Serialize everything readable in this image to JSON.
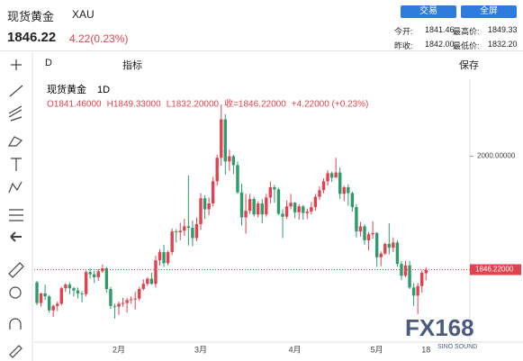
{
  "header": {
    "name": "现货黄金",
    "code": "XAU",
    "price": "1846.22",
    "change": "4.22(0.23%)",
    "buttons": [
      "交易",
      "全屏"
    ],
    "stats": [
      [
        "今开:",
        "1841.46",
        "最高价:",
        "1849.33"
      ],
      [
        "昨收:",
        "1842.00",
        "最低价:",
        "1832.20"
      ]
    ]
  },
  "toolbar": {
    "interval": "D",
    "indicators": "指标",
    "save": "保存"
  },
  "watermark": {
    "brand": "FX168",
    "sub": "SINO SOUND"
  },
  "chart_data": {
    "type": "candlestick",
    "title": "现货黄金",
    "interval_label": "1D",
    "legend": [
      "O1841.46000",
      "H1849.33000",
      "L1832.20000",
      "收=1846.22000",
      "+4.22000 (+0.23%)"
    ],
    "up_color": "#e0434f",
    "down_color": "#2f9a6c",
    "ylim": [
      1748,
      2102
    ],
    "yticks": [
      {
        "value": 2000,
        "label": "2000.00000"
      }
    ],
    "last_price": {
      "value": 1846.22,
      "label": "1846.22000"
    },
    "categories": [
      null,
      null,
      null,
      null,
      null,
      null,
      null,
      null,
      null,
      null,
      null,
      null,
      null,
      null,
      null,
      null,
      null,
      null,
      null,
      null,
      "2月",
      null,
      null,
      null,
      null,
      null,
      null,
      null,
      null,
      null,
      null,
      null,
      null,
      null,
      null,
      null,
      null,
      null,
      null,
      null,
      "3月",
      null,
      null,
      null,
      null,
      null,
      null,
      null,
      null,
      null,
      null,
      null,
      null,
      null,
      null,
      null,
      null,
      null,
      null,
      null,
      null,
      null,
      null,
      "4月",
      null,
      null,
      null,
      null,
      null,
      null,
      null,
      null,
      null,
      null,
      null,
      null,
      null,
      null,
      null,
      null,
      null,
      null,
      null,
      "5月",
      null,
      null,
      null,
      null,
      null,
      null,
      null,
      null,
      null,
      null,
      null,
      "18"
    ],
    "ohlc": [
      [
        1829,
        1831,
        1798,
        1801
      ],
      [
        1801,
        1815,
        1796,
        1814
      ],
      [
        1814,
        1826,
        1805,
        1810
      ],
      [
        1810,
        1812,
        1788,
        1791
      ],
      [
        1791,
        1799,
        1782,
        1797
      ],
      [
        1797,
        1803,
        1790,
        1800
      ],
      [
        1800,
        1823,
        1798,
        1821
      ],
      [
        1821,
        1828,
        1816,
        1826
      ],
      [
        1826,
        1829,
        1813,
        1821
      ],
      [
        1821,
        1823,
        1810,
        1818
      ],
      [
        1818,
        1822,
        1807,
        1814
      ],
      [
        1814,
        1817,
        1802,
        1813
      ],
      [
        1813,
        1845,
        1810,
        1843
      ],
      [
        1843,
        1848,
        1834,
        1840
      ],
      [
        1840,
        1845,
        1828,
        1836
      ],
      [
        1836,
        1847,
        1831,
        1844
      ],
      [
        1844,
        1853,
        1842,
        1848
      ],
      [
        1848,
        1850,
        1815,
        1820
      ],
      [
        1820,
        1823,
        1793,
        1797
      ],
      [
        1797,
        1800,
        1780,
        1796
      ],
      [
        1796,
        1803,
        1785,
        1800
      ],
      [
        1800,
        1808,
        1796,
        1801
      ],
      [
        1801,
        1808,
        1788,
        1805
      ],
      [
        1805,
        1810,
        1800,
        1806
      ],
      [
        1806,
        1816,
        1792,
        1807
      ],
      [
        1807,
        1823,
        1804,
        1820
      ],
      [
        1820,
        1833,
        1818,
        1827
      ],
      [
        1827,
        1836,
        1824,
        1834
      ],
      [
        1834,
        1842,
        1826,
        1827
      ],
      [
        1827,
        1865,
        1822,
        1859
      ],
      [
        1859,
        1874,
        1852,
        1870
      ],
      [
        1870,
        1880,
        1850,
        1855
      ],
      [
        1855,
        1872,
        1852,
        1870
      ],
      [
        1870,
        1902,
        1866,
        1898
      ],
      [
        1898,
        1901,
        1883,
        1897
      ],
      [
        1897,
        1910,
        1886,
        1899
      ],
      [
        1899,
        1915,
        1892,
        1905
      ],
      [
        1905,
        1974,
        1879,
        1903
      ],
      [
        1903,
        1913,
        1878,
        1889
      ],
      [
        1889,
        1917,
        1885,
        1908
      ],
      [
        1908,
        1950,
        1900,
        1943
      ],
      [
        1943,
        1947,
        1915,
        1928
      ],
      [
        1928,
        1944,
        1920,
        1936
      ],
      [
        1936,
        1972,
        1932,
        1966
      ],
      [
        1966,
        2002,
        1960,
        1998
      ],
      [
        1998,
        2070,
        1987,
        2050
      ],
      [
        2050,
        2057,
        1975,
        1993
      ],
      [
        1993,
        2009,
        1980,
        2000
      ],
      [
        2000,
        2002,
        1976,
        1988
      ],
      [
        1988,
        1993,
        1949,
        1951
      ],
      [
        1951,
        1963,
        1906,
        1917
      ],
      [
        1917,
        1949,
        1895,
        1926
      ],
      [
        1926,
        1949,
        1922,
        1942
      ],
      [
        1942,
        1945,
        1918,
        1921
      ],
      [
        1921,
        1939,
        1917,
        1936
      ],
      [
        1936,
        1942,
        1909,
        1921
      ],
      [
        1921,
        1949,
        1918,
        1944
      ],
      [
        1944,
        1966,
        1936,
        1958
      ],
      [
        1958,
        1961,
        1937,
        1955
      ],
      [
        1955,
        1957,
        1920,
        1922
      ],
      [
        1922,
        1928,
        1889,
        1918
      ],
      [
        1918,
        1940,
        1915,
        1932
      ],
      [
        1932,
        1949,
        1928,
        1937
      ],
      [
        1937,
        1938,
        1916,
        1924
      ],
      [
        1924,
        1935,
        1914,
        1932
      ],
      [
        1932,
        1934,
        1914,
        1923
      ],
      [
        1923,
        1929,
        1915,
        1925
      ],
      [
        1925,
        1938,
        1921,
        1931
      ],
      [
        1931,
        1949,
        1926,
        1945
      ],
      [
        1945,
        1959,
        1941,
        1954
      ],
      [
        1954,
        1970,
        1950,
        1966
      ],
      [
        1966,
        1981,
        1960,
        1977
      ],
      [
        1977,
        1979,
        1965,
        1971
      ],
      [
        1971,
        1998,
        1971,
        1978
      ],
      [
        1978,
        1985,
        1942,
        1949
      ],
      [
        1949,
        1960,
        1939,
        1958
      ],
      [
        1958,
        1962,
        1933,
        1950
      ],
      [
        1950,
        1952,
        1925,
        1931
      ],
      [
        1931,
        1935,
        1890,
        1898
      ],
      [
        1898,
        1911,
        1891,
        1905
      ],
      [
        1905,
        1908,
        1880,
        1886
      ],
      [
        1886,
        1897,
        1872,
        1894
      ],
      [
        1894,
        1912,
        1888,
        1896
      ],
      [
        1896,
        1897,
        1850,
        1863
      ],
      [
        1863,
        1871,
        1851,
        1868
      ],
      [
        1868,
        1883,
        1866,
        1881
      ],
      [
        1881,
        1909,
        1867,
        1876
      ],
      [
        1876,
        1890,
        1870,
        1883
      ],
      [
        1883,
        1886,
        1850,
        1854
      ],
      [
        1854,
        1858,
        1832,
        1838
      ],
      [
        1838,
        1858,
        1836,
        1852
      ],
      [
        1852,
        1858,
        1820,
        1822
      ],
      [
        1822,
        1828,
        1797,
        1811
      ],
      [
        1811,
        1828,
        1786,
        1824
      ],
      [
        1824,
        1845,
        1815,
        1842
      ],
      [
        1841.46,
        1849.33,
        1832.2,
        1846.22
      ]
    ]
  }
}
